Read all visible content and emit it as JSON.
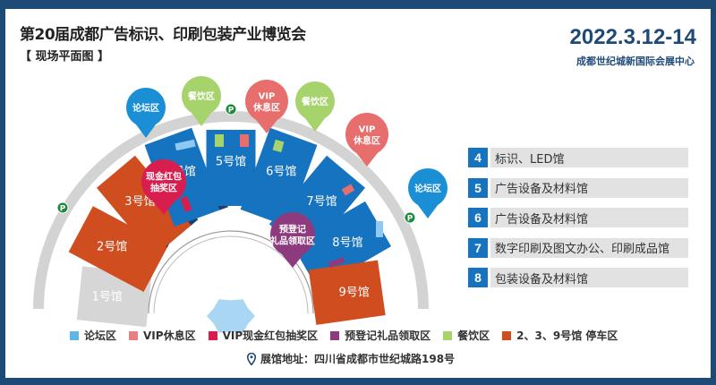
{
  "header": {
    "title": "第20届成都广告标识、印刷包装产业博览会",
    "subtitle": "【 现场平面图 】",
    "date": "2022.3.12-14",
    "venue": "成都世纪城新国际会展中心"
  },
  "colors": {
    "hall_blue": "#1673bf",
    "hall_orange": "#cf4d1f",
    "hall_gray": "#d6d6d6",
    "forum": "#1a8fd6",
    "vip": "#e86e6e",
    "lottery": "#d81e4f",
    "gift": "#8d3b7e",
    "dining": "#a6d36b",
    "parking": "#1a8a3a",
    "frame": "#1e4a78"
  },
  "halls": [
    {
      "label": "1号馆",
      "type": "gray"
    },
    {
      "label": "2号馆",
      "type": "orange"
    },
    {
      "label": "3号馆",
      "type": "orange"
    },
    {
      "label": "4号馆",
      "type": "blue"
    },
    {
      "label": "5号馆",
      "type": "blue"
    },
    {
      "label": "6号馆",
      "type": "blue"
    },
    {
      "label": "7号馆",
      "type": "blue"
    },
    {
      "label": "8号馆",
      "type": "blue"
    },
    {
      "label": "9号馆",
      "type": "orange"
    }
  ],
  "pins": [
    {
      "lines": [
        "论坛区"
      ],
      "type": "forum"
    },
    {
      "lines": [
        "餐饮区"
      ],
      "type": "dining"
    },
    {
      "lines": [
        "VIP",
        "休息区"
      ],
      "type": "vip"
    },
    {
      "lines": [
        "餐饮区"
      ],
      "type": "dining"
    },
    {
      "lines": [
        "VIP",
        "休息区"
      ],
      "type": "vip"
    },
    {
      "lines": [
        "论坛区"
      ],
      "type": "forum"
    },
    {
      "lines": [
        "现金红包",
        "抽奖区"
      ],
      "type": "lottery"
    },
    {
      "lines": [
        "预登记",
        "礼品领取区"
      ],
      "type": "gift"
    }
  ],
  "parking_label": "P",
  "hall_list": [
    {
      "num": "4",
      "label": "标识、LED馆"
    },
    {
      "num": "5",
      "label": "广告设备及材料馆"
    },
    {
      "num": "6",
      "label": "广告设备及材料馆"
    },
    {
      "num": "7",
      "label": "数字印刷及图文办公、印刷成品馆"
    },
    {
      "num": "8",
      "label": "包装设备及材料馆"
    }
  ],
  "legend": [
    {
      "label": "论坛区",
      "color": "#5fb6e6"
    },
    {
      "label": "VIP休息区",
      "color": "#e88080"
    },
    {
      "label": "VIP现金红包抽奖区",
      "color": "#d81e4f"
    },
    {
      "label": "预登记礼品领取区",
      "color": "#8d3b7e"
    },
    {
      "label": "餐饮区",
      "color": "#a6d36b"
    },
    {
      "label": "2、3、9号馆  停车区",
      "color": "#cf4d1f"
    }
  ],
  "address": "展馆地址：四川省成都市世纪城路198号",
  "address_icon": "location-pin-icon"
}
